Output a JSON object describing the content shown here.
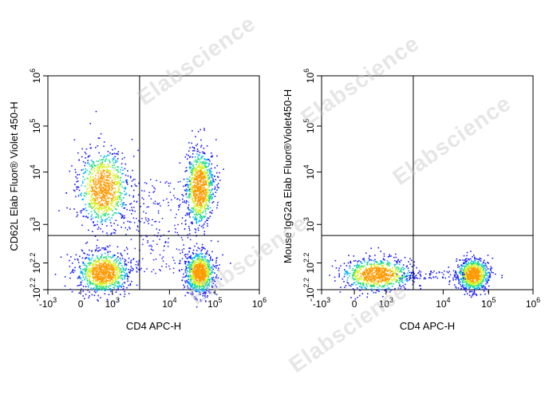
{
  "watermark": "Elabscience",
  "chart_data": [
    {
      "type": "scatter",
      "subtype": "flow-cytometry-density-dot-plot",
      "xlabel": "CD4 APC-H",
      "ylabel": "CD62L Elab Fluor® Violet 450-H",
      "x_scale": "biexponential",
      "y_scale": "biexponential",
      "x_ticks": [
        "-10^3",
        "0",
        "10^3",
        "10^4",
        "10^5",
        "10^6"
      ],
      "y_ticks": [
        "-10^2.2",
        "10^2.2",
        "10^3",
        "10^4",
        "10^5",
        "10^6"
      ],
      "xlim": [
        -1000,
        1000000
      ],
      "ylim": [
        -158,
        1000000
      ],
      "quadrant_gate": {
        "x": 3000,
        "y": 600
      },
      "populations": [
        {
          "name": "CD4- CD62L+",
          "x_center": 400,
          "y_center": 5000
        },
        {
          "name": "CD4- CD62L-",
          "x_center": 400,
          "y_center": 40
        },
        {
          "name": "CD4+ CD62L+",
          "x_center": 45000,
          "y_center": 5000
        },
        {
          "name": "CD4+ CD62L-",
          "x_center": 45000,
          "y_center": 40
        }
      ],
      "grid": false
    },
    {
      "type": "scatter",
      "subtype": "flow-cytometry-density-dot-plot",
      "xlabel": "CD4 APC-H",
      "ylabel": "Mouse IgG2a Elab Fluor®Violet450-H",
      "x_scale": "biexponential",
      "y_scale": "biexponential",
      "x_ticks": [
        "-10^3",
        "0",
        "10^3",
        "10^4",
        "10^5",
        "10^6"
      ],
      "y_ticks": [
        "-10^2.2",
        "10^2.2",
        "10^3",
        "10^4",
        "10^5",
        "10^6"
      ],
      "xlim": [
        -1000,
        1000000
      ],
      "ylim": [
        -158,
        1000000
      ],
      "quadrant_gate": {
        "x": 3000,
        "y": 600
      },
      "populations": [
        {
          "name": "CD4- isotype",
          "x_center": 400,
          "y_center": 20
        },
        {
          "name": "CD4+ isotype",
          "x_center": 45000,
          "y_center": 20
        }
      ],
      "grid": false
    }
  ]
}
